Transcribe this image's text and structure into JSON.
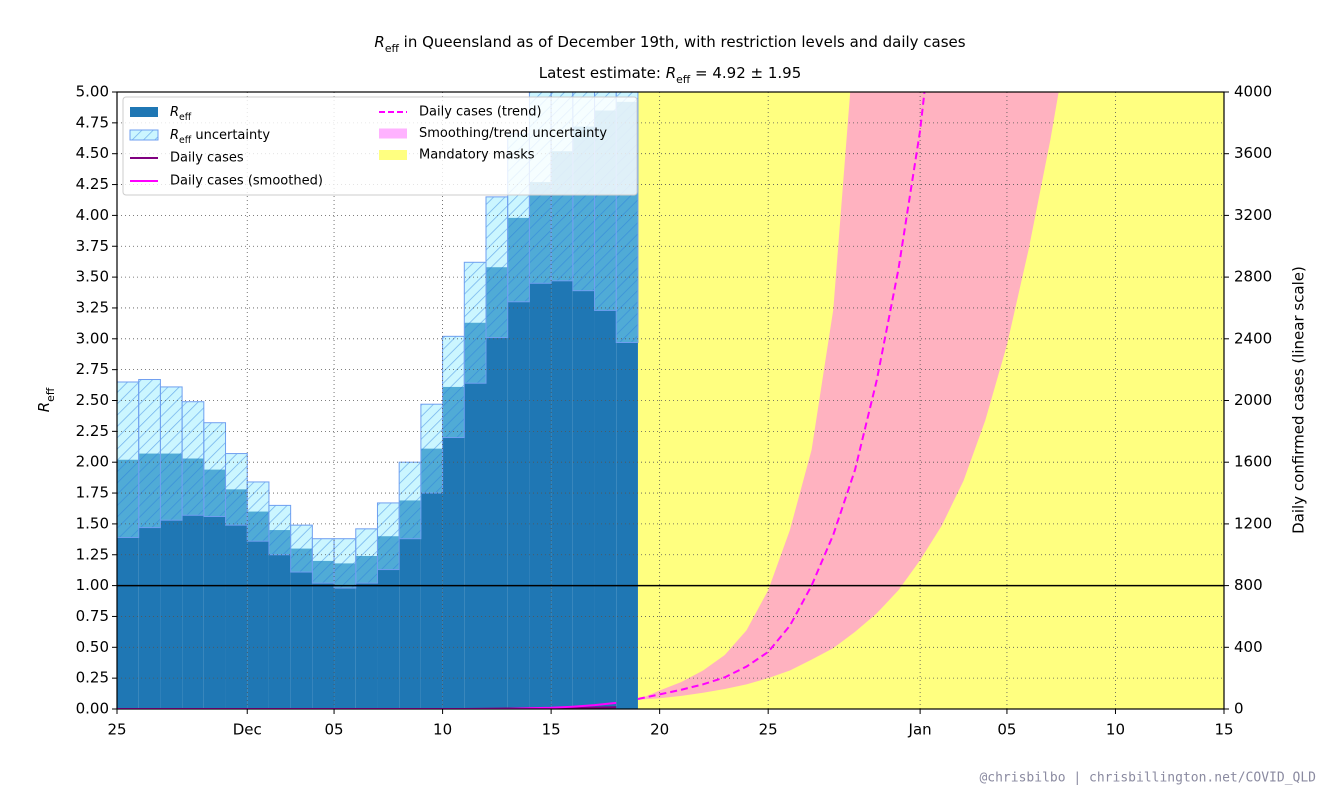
{
  "chart_data": {
    "type": "step-bar",
    "title": [
      {
        "text": "R",
        "style": "italic"
      },
      {
        "text": "eff",
        "style": "sub"
      },
      {
        "text": " in Queensland as of December 19th, with restriction levels and daily cases"
      }
    ],
    "subtitle": [
      {
        "text": "Latest estimate: "
      },
      {
        "text": "R",
        "style": "italic"
      },
      {
        "text": "eff",
        "style": "sub"
      },
      {
        "text": " = 4.92 ± 1.95"
      }
    ],
    "ylabel": [
      {
        "text": "R",
        "style": "italic"
      },
      {
        "text": "eff",
        "style": "sub"
      }
    ],
    "y2label": "Daily confirmed cases (linear scale)",
    "credit": "@chrisbilbo | chrisbillington.net/COVID_QLD",
    "categories": [
      "25",
      null,
      null,
      null,
      null,
      null,
      "Dec",
      null,
      null,
      null,
      "05",
      null,
      null,
      null,
      null,
      "10",
      null,
      null,
      null,
      null,
      "15",
      null,
      null,
      null,
      null,
      "20",
      null,
      null,
      null,
      null,
      "25",
      null,
      null,
      null,
      null,
      null,
      null,
      "Jan",
      null,
      null,
      null,
      "05",
      null,
      null,
      null,
      null,
      "10",
      null,
      null,
      null,
      null,
      "15"
    ],
    "ylim": [
      0,
      5
    ],
    "yticks": [
      {
        "value": 0,
        "label": "0.00"
      },
      {
        "value": 0.25,
        "label": "0.25"
      },
      {
        "value": 0.5,
        "label": "0.50"
      },
      {
        "value": 0.75,
        "label": "0.75"
      },
      {
        "value": 1,
        "label": "1.00"
      },
      {
        "value": 1.25,
        "label": "1.25"
      },
      {
        "value": 1.5,
        "label": "1.50"
      },
      {
        "value": 1.75,
        "label": "1.75"
      },
      {
        "value": 2,
        "label": "2.00"
      },
      {
        "value": 2.25,
        "label": "2.25"
      },
      {
        "value": 2.5,
        "label": "2.50"
      },
      {
        "value": 2.75,
        "label": "2.75"
      },
      {
        "value": 3,
        "label": "3.00"
      },
      {
        "value": 3.25,
        "label": "3.25"
      },
      {
        "value": 3.5,
        "label": "3.50"
      },
      {
        "value": 3.75,
        "label": "3.75"
      },
      {
        "value": 4,
        "label": "4.00"
      },
      {
        "value": 4.25,
        "label": "4.25"
      },
      {
        "value": 4.5,
        "label": "4.50"
      },
      {
        "value": 4.75,
        "label": "4.75"
      },
      {
        "value": 5,
        "label": "5.00"
      }
    ],
    "y2lim": [
      0,
      4000
    ],
    "y2ticks": [
      0,
      400,
      800,
      1200,
      1600,
      2000,
      2400,
      2800,
      3200,
      3600,
      4000
    ],
    "hline": 1,
    "grid": true,
    "legend": "upper left",
    "series": [
      {
        "name": [
          {
            "text": "R",
            "style": "italic"
          },
          {
            "text": "eff",
            "style": "sub"
          }
        ],
        "style": "bar",
        "color": "#1f77b4",
        "values": [
          2.02,
          2.07,
          2.07,
          2.03,
          1.94,
          1.78,
          1.6,
          1.45,
          1.3,
          1.2,
          1.18,
          1.24,
          1.4,
          1.69,
          2.11,
          2.61,
          3.13,
          3.58,
          3.98,
          4.27,
          4.52,
          4.72,
          4.85,
          4.92,
          null,
          null,
          null,
          null,
          null,
          null,
          null,
          null,
          null,
          null,
          null,
          null,
          null,
          null,
          null,
          null,
          null,
          null,
          null,
          null,
          null,
          null,
          null,
          null,
          null,
          null,
          null,
          null
        ]
      },
      {
        "name": [
          {
            "text": "R",
            "style": "italic"
          },
          {
            "text": "eff",
            "style": "sub"
          },
          {
            "text": " uncertainty"
          }
        ],
        "style": "errorband",
        "color": "#8ee8ff",
        "values": [
          0.63,
          0.6,
          0.54,
          0.46,
          0.38,
          0.29,
          0.24,
          0.2,
          0.19,
          0.18,
          0.2,
          0.22,
          0.27,
          0.31,
          0.36,
          0.41,
          0.49,
          0.57,
          0.68,
          0.82,
          1.05,
          1.33,
          1.62,
          1.95,
          null,
          null,
          null,
          null,
          null,
          null,
          null,
          null,
          null,
          null,
          null,
          null,
          null,
          null,
          null,
          null,
          null,
          null,
          null,
          null,
          null,
          null,
          null,
          null,
          null,
          null,
          null,
          null
        ]
      },
      {
        "name": "Daily cases",
        "style": "line",
        "axis": "y2",
        "color": "#800080",
        "values": [
          0,
          0,
          0,
          0,
          0,
          0,
          0,
          0,
          0,
          0,
          0,
          0,
          0,
          0,
          0,
          0,
          0,
          2,
          3,
          5,
          4,
          6,
          9,
          11,
          null,
          null,
          null,
          null,
          null,
          null,
          null,
          null,
          null,
          null,
          null,
          null,
          null,
          null,
          null,
          null,
          null,
          null,
          null,
          null,
          null,
          null,
          null,
          null,
          null,
          null,
          null,
          null
        ]
      },
      {
        "name": "Daily cases (smoothed)",
        "style": "line",
        "axis": "y2",
        "color": "#ff00ff",
        "values": [
          0,
          0,
          0,
          0,
          0,
          0,
          0,
          0,
          0,
          0,
          0,
          0,
          0,
          0,
          0,
          0,
          0,
          0,
          0,
          5,
          8,
          15,
          25,
          40,
          null,
          null,
          null,
          null,
          null,
          null,
          null,
          null,
          null,
          null,
          null,
          null,
          null,
          null,
          null,
          null,
          null,
          null,
          null,
          null,
          null,
          null,
          null,
          null,
          null,
          null,
          null,
          null
        ]
      },
      {
        "name": "Daily cases (trend)",
        "style": "dashed",
        "axis": "y2",
        "color": "#ff00ff",
        "values": [
          null,
          null,
          null,
          null,
          null,
          null,
          null,
          null,
          null,
          null,
          null,
          null,
          null,
          null,
          null,
          null,
          null,
          null,
          null,
          null,
          null,
          null,
          null,
          null,
          65,
          95,
          125,
          160,
          205,
          275,
          370,
          540,
          800,
          1130,
          1550,
          2130,
          2850,
          3750,
          5000,
          null,
          null,
          null,
          null,
          null,
          null,
          null,
          null,
          null,
          null,
          null,
          null,
          null
        ]
      },
      {
        "name": "Smoothing/trend uncertainty",
        "style": "band",
        "axis": "y2",
        "color": "#ff66ff",
        "upper": [
          null,
          null,
          null,
          null,
          null,
          null,
          null,
          null,
          null,
          null,
          null,
          null,
          null,
          null,
          null,
          null,
          null,
          null,
          null,
          null,
          null,
          null,
          null,
          null,
          60,
          120,
          175,
          250,
          350,
          510,
          770,
          1160,
          1680,
          2590,
          4400,
          null,
          null,
          null,
          null,
          null,
          null,
          null,
          null,
          null,
          null,
          null,
          null,
          null,
          null,
          null,
          null,
          null
        ],
        "lower": [
          null,
          null,
          null,
          null,
          null,
          null,
          null,
          null,
          null,
          null,
          null,
          null,
          null,
          null,
          null,
          null,
          null,
          null,
          null,
          null,
          null,
          null,
          null,
          null,
          60,
          70,
          85,
          105,
          130,
          160,
          200,
          250,
          320,
          395,
          500,
          620,
          770,
          965,
          1190,
          1480,
          1870,
          2360,
          2980,
          3690,
          4500,
          null,
          null,
          null,
          null,
          null,
          null,
          null
        ]
      },
      {
        "name": "Mandatory masks",
        "style": "region",
        "color": "#ffff80",
        "from": 24,
        "to": 51
      }
    ]
  }
}
